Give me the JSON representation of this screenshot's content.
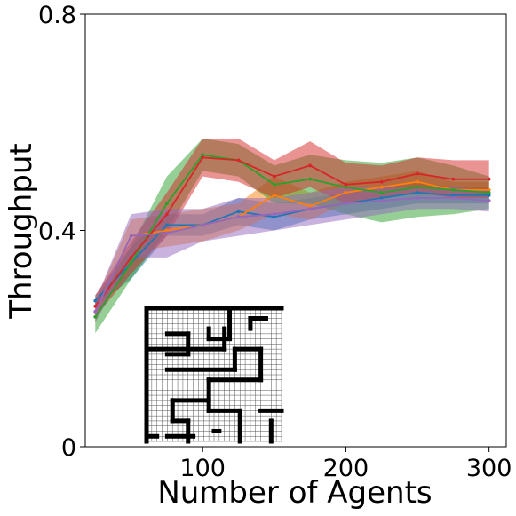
{
  "chart_data": {
    "type": "line",
    "title": "",
    "xlabel": "Number of Agents",
    "ylabel": "Throughput",
    "xlim": [
      18,
      312
    ],
    "ylim": [
      0,
      0.8
    ],
    "xticks": [
      100,
      200,
      300
    ],
    "xtick_labels": [
      "100",
      "200",
      "300"
    ],
    "yticks": [
      0,
      0.4,
      0.8
    ],
    "ytick_labels": [
      "0",
      "0.4",
      "0.8"
    ],
    "grid": false,
    "legend": "none",
    "x": [
      25,
      50,
      75,
      100,
      125,
      150,
      175,
      200,
      225,
      250,
      275,
      300
    ],
    "series": [
      {
        "color": "#1f77b4",
        "values": [
          0.27,
          0.34,
          0.41,
          0.41,
          0.435,
          0.425,
          0.44,
          0.45,
          0.46,
          0.47,
          0.465,
          0.465
        ],
        "lower": [
          0.26,
          0.31,
          0.39,
          0.39,
          0.41,
          0.4,
          0.42,
          0.43,
          0.44,
          0.45,
          0.45,
          0.45
        ],
        "upper": [
          0.28,
          0.37,
          0.43,
          0.43,
          0.46,
          0.45,
          0.46,
          0.47,
          0.48,
          0.49,
          0.48,
          0.48
        ]
      },
      {
        "color": "#ff7f0e",
        "values": [
          0.25,
          0.39,
          0.4,
          0.41,
          0.425,
          0.465,
          0.445,
          0.47,
          0.48,
          0.49,
          0.475,
          0.475
        ],
        "lower": [
          0.23,
          0.36,
          0.37,
          0.38,
          0.4,
          0.43,
          0.42,
          0.45,
          0.46,
          0.47,
          0.46,
          0.46
        ],
        "upper": [
          0.27,
          0.42,
          0.43,
          0.44,
          0.45,
          0.5,
          0.47,
          0.49,
          0.5,
          0.51,
          0.49,
          0.49
        ]
      },
      {
        "color": "#2ca02c",
        "values": [
          0.24,
          0.34,
          0.45,
          0.54,
          0.53,
          0.485,
          0.495,
          0.48,
          0.47,
          0.48,
          0.475,
          0.47
        ],
        "lower": [
          0.21,
          0.31,
          0.4,
          0.51,
          0.5,
          0.45,
          0.45,
          0.43,
          0.415,
          0.425,
          0.43,
          0.44
        ],
        "upper": [
          0.27,
          0.37,
          0.5,
          0.57,
          0.56,
          0.52,
          0.54,
          0.53,
          0.525,
          0.535,
          0.52,
          0.5
        ]
      },
      {
        "color": "#d62728",
        "values": [
          0.26,
          0.35,
          0.43,
          0.535,
          0.53,
          0.5,
          0.52,
          0.485,
          0.49,
          0.505,
          0.495,
          0.495
        ],
        "lower": [
          0.24,
          0.32,
          0.39,
          0.5,
          0.49,
          0.46,
          0.48,
          0.45,
          0.46,
          0.47,
          0.46,
          0.46
        ],
        "upper": [
          0.28,
          0.38,
          0.47,
          0.57,
          0.57,
          0.53,
          0.565,
          0.525,
          0.52,
          0.535,
          0.53,
          0.53
        ]
      },
      {
        "color": "#9467bd",
        "values": [
          0.25,
          0.39,
          0.395,
          0.41,
          0.425,
          0.43,
          0.44,
          0.45,
          0.455,
          0.46,
          0.46,
          0.455
        ],
        "lower": [
          0.23,
          0.35,
          0.35,
          0.38,
          0.39,
          0.4,
          0.41,
          0.42,
          0.43,
          0.44,
          0.44,
          0.435
        ],
        "upper": [
          0.27,
          0.43,
          0.44,
          0.44,
          0.46,
          0.46,
          0.47,
          0.48,
          0.48,
          0.48,
          0.48,
          0.475
        ]
      }
    ],
    "inset": {
      "description": "maze map",
      "cols": 26,
      "rows": 26,
      "walls": [
        [
          0,
          0,
          26,
          0
        ],
        [
          0,
          0,
          0,
          26
        ],
        [
          0,
          25,
          2,
          25
        ],
        [
          4,
          25,
          9,
          25
        ],
        [
          24,
          22,
          24,
          26
        ],
        [
          4,
          5,
          8,
          5
        ],
        [
          8,
          5,
          8,
          9
        ],
        [
          8,
          9,
          4,
          9
        ],
        [
          16,
          0,
          16,
          6
        ],
        [
          16,
          6,
          12,
          6
        ],
        [
          12,
          6,
          12,
          4
        ],
        [
          20,
          2,
          23,
          2
        ],
        [
          20,
          2,
          20,
          4
        ],
        [
          0,
          8,
          15,
          8
        ],
        [
          15,
          8,
          15,
          4
        ],
        [
          17,
          8,
          22,
          8
        ],
        [
          17,
          8,
          17,
          12
        ],
        [
          17,
          12,
          4,
          12
        ],
        [
          22,
          8,
          22,
          14
        ],
        [
          22,
          14,
          12,
          14
        ],
        [
          12,
          14,
          12,
          20
        ],
        [
          12,
          18,
          5,
          18
        ],
        [
          5,
          18,
          5,
          22
        ],
        [
          5,
          22,
          8,
          22
        ],
        [
          8,
          22,
          8,
          26
        ],
        [
          12,
          20,
          18,
          20
        ],
        [
          18,
          20,
          18,
          26
        ],
        [
          22,
          20,
          26,
          20
        ],
        [
          13,
          24,
          14,
          24
        ]
      ]
    }
  }
}
